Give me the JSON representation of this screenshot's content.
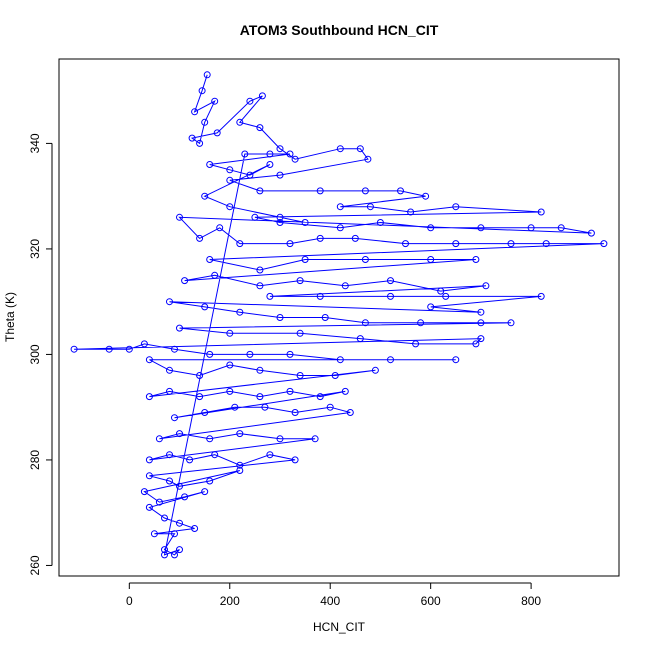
{
  "chart_data": {
    "type": "scatter",
    "title": "ATOM3 Southbound HCN_CIT",
    "xlabel": "HCN_CIT",
    "ylabel": "Theta (K)",
    "xlim": [
      -140,
      975
    ],
    "ylim": [
      258,
      356
    ],
    "x_ticks": [
      0,
      200,
      400,
      600,
      800
    ],
    "y_ticks": [
      260,
      280,
      300,
      320,
      340
    ],
    "grid": false,
    "legend": "none",
    "marker": "open-circle",
    "connected": true,
    "color": "#0000ff",
    "series": [
      {
        "values": [
          [
            155,
            353
          ],
          [
            145,
            350
          ],
          [
            130,
            346
          ],
          [
            170,
            348
          ],
          [
            150,
            344
          ],
          [
            140,
            340
          ],
          [
            125,
            341
          ],
          [
            175,
            342
          ],
          [
            240,
            348
          ],
          [
            265,
            349
          ],
          [
            220,
            344
          ],
          [
            260,
            343
          ],
          [
            300,
            339
          ],
          [
            330,
            337
          ],
          [
            420,
            339
          ],
          [
            460,
            339
          ],
          [
            475,
            337
          ],
          [
            300,
            334
          ],
          [
            200,
            333
          ],
          [
            260,
            331
          ],
          [
            380,
            331
          ],
          [
            470,
            331
          ],
          [
            540,
            331
          ],
          [
            590,
            330
          ],
          [
            420,
            328
          ],
          [
            480,
            328
          ],
          [
            560,
            327
          ],
          [
            650,
            328
          ],
          [
            820,
            327
          ],
          [
            250,
            326
          ],
          [
            300,
            325
          ],
          [
            420,
            324
          ],
          [
            500,
            325
          ],
          [
            600,
            324
          ],
          [
            700,
            324
          ],
          [
            800,
            324
          ],
          [
            860,
            324
          ],
          [
            920,
            323
          ],
          [
            100,
            326
          ],
          [
            140,
            322
          ],
          [
            180,
            324
          ],
          [
            220,
            321
          ],
          [
            320,
            321
          ],
          [
            380,
            322
          ],
          [
            450,
            322
          ],
          [
            550,
            321
          ],
          [
            650,
            321
          ],
          [
            760,
            321
          ],
          [
            830,
            321
          ],
          [
            945,
            321
          ],
          [
            160,
            318
          ],
          [
            260,
            316
          ],
          [
            350,
            318
          ],
          [
            470,
            318
          ],
          [
            600,
            318
          ],
          [
            690,
            318
          ],
          [
            110,
            314
          ],
          [
            170,
            315
          ],
          [
            260,
            313
          ],
          [
            340,
            314
          ],
          [
            430,
            313
          ],
          [
            520,
            314
          ],
          [
            620,
            312
          ],
          [
            710,
            313
          ],
          [
            280,
            311
          ],
          [
            380,
            311
          ],
          [
            520,
            311
          ],
          [
            630,
            311
          ],
          [
            820,
            311
          ],
          [
            600,
            309
          ],
          [
            700,
            308
          ],
          [
            80,
            310
          ],
          [
            150,
            309
          ],
          [
            220,
            308
          ],
          [
            300,
            307
          ],
          [
            390,
            307
          ],
          [
            470,
            306
          ],
          [
            580,
            306
          ],
          [
            700,
            306
          ],
          [
            760,
            306
          ],
          [
            100,
            305
          ],
          [
            200,
            304
          ],
          [
            340,
            304
          ],
          [
            460,
            303
          ],
          [
            570,
            302
          ],
          [
            690,
            302
          ],
          [
            700,
            303
          ],
          [
            -110,
            301
          ],
          [
            -40,
            301
          ],
          [
            0,
            301
          ],
          [
            30,
            302
          ],
          [
            90,
            301
          ],
          [
            160,
            300
          ],
          [
            240,
            300
          ],
          [
            320,
            300
          ],
          [
            420,
            299
          ],
          [
            520,
            299
          ],
          [
            650,
            299
          ],
          [
            40,
            299
          ],
          [
            80,
            297
          ],
          [
            140,
            296
          ],
          [
            200,
            298
          ],
          [
            260,
            297
          ],
          [
            340,
            296
          ],
          [
            410,
            296
          ],
          [
            490,
            297
          ],
          [
            40,
            292
          ],
          [
            80,
            293
          ],
          [
            140,
            292
          ],
          [
            200,
            293
          ],
          [
            260,
            292
          ],
          [
            320,
            293
          ],
          [
            380,
            292
          ],
          [
            430,
            293
          ],
          [
            90,
            288
          ],
          [
            150,
            289
          ],
          [
            210,
            290
          ],
          [
            270,
            290
          ],
          [
            330,
            289
          ],
          [
            400,
            290
          ],
          [
            440,
            289
          ],
          [
            60,
            284
          ],
          [
            100,
            285
          ],
          [
            160,
            284
          ],
          [
            220,
            285
          ],
          [
            300,
            284
          ],
          [
            370,
            284
          ],
          [
            40,
            280
          ],
          [
            80,
            281
          ],
          [
            120,
            280
          ],
          [
            170,
            281
          ],
          [
            220,
            279
          ],
          [
            280,
            281
          ],
          [
            330,
            280
          ],
          [
            40,
            277
          ],
          [
            80,
            276
          ],
          [
            100,
            275
          ],
          [
            160,
            276
          ],
          [
            220,
            278
          ],
          [
            30,
            274
          ],
          [
            60,
            272
          ],
          [
            110,
            273
          ],
          [
            150,
            274
          ],
          [
            40,
            271
          ],
          [
            70,
            269
          ],
          [
            100,
            268
          ],
          [
            130,
            267
          ],
          [
            50,
            266
          ],
          [
            90,
            266
          ],
          [
            70,
            263
          ],
          [
            90,
            262
          ],
          [
            100,
            263
          ],
          [
            70,
            262
          ],
          [
            230,
            338
          ],
          [
            280,
            338
          ],
          [
            320,
            338
          ],
          [
            160,
            336
          ],
          [
            200,
            335
          ],
          [
            240,
            334
          ],
          [
            280,
            336
          ],
          [
            150,
            330
          ],
          [
            200,
            328
          ],
          [
            300,
            326
          ],
          [
            350,
            325
          ]
        ]
      }
    ]
  }
}
